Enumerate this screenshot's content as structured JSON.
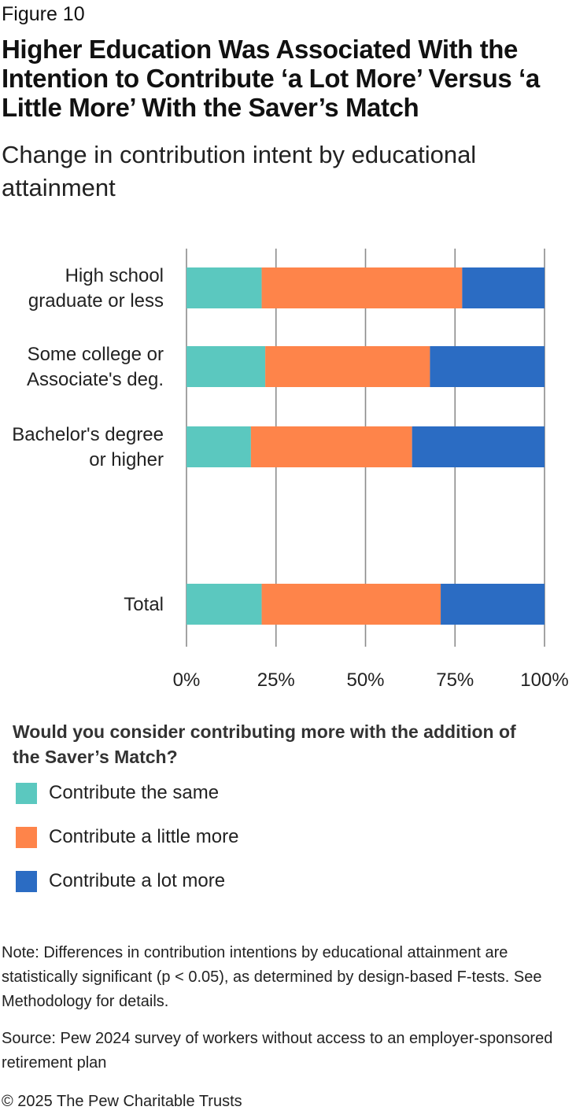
{
  "figure_label": "Figure 10",
  "title": "Higher Education Was Associated With the Intention to Contribute ‘a Lot More’ Versus ‘a Little More’ With the Saver’s Match",
  "subtitle": "Change in contribution intent by educational attainment",
  "chart_data": {
    "type": "bar",
    "orientation": "horizontal",
    "stacked": true,
    "categories": [
      [
        "High school",
        "graduate or less"
      ],
      [
        "Some college or",
        "Associate's deg."
      ],
      [
        "Bachelor's degree",
        "or higher"
      ],
      [],
      [
        "Total"
      ]
    ],
    "series": [
      {
        "name": "Contribute the same",
        "color": "#5bc8bf",
        "values": [
          21,
          22,
          18,
          null,
          21
        ]
      },
      {
        "name": "Contribute a little more",
        "color": "#fe844a",
        "values": [
          56,
          46,
          45,
          null,
          50
        ]
      },
      {
        "name": "Contribute a lot more",
        "color": "#2b6cc3",
        "values": [
          23,
          32,
          37,
          null,
          29
        ]
      }
    ],
    "xlim": [
      0,
      100
    ],
    "xticks": [
      "0%",
      "25%",
      "50%",
      "75%",
      "100%"
    ],
    "grid": true,
    "legend_position": "bottom-left"
  },
  "legend": {
    "title": "Would you consider contributing more with the addition of the Saver’s Match?",
    "items": [
      {
        "label": "Contribute the same",
        "color": "#5bc8bf"
      },
      {
        "label": "Contribute a little more",
        "color": "#fe844a"
      },
      {
        "label": "Contribute a lot more",
        "color": "#2b6cc3"
      }
    ]
  },
  "note": "Note: Differences in contribution intentions by educational attainment are statistically significant (p < 0.05), as determined by design-based F-tests. See Methodology for details.",
  "source": "Source: Pew 2024 survey of workers without access to an employer-sponsored retirement plan",
  "copyright": "© 2025 The Pew Charitable Trusts"
}
